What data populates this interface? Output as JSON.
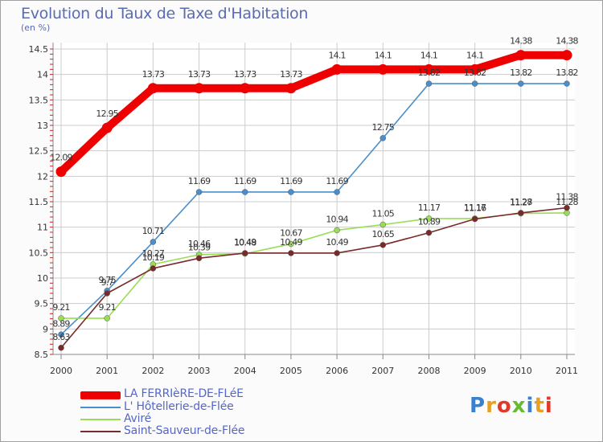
{
  "title": "Evolution du Taux de Taxe d'Habitation",
  "subtitle": "(en %)",
  "logo": "Proxiti",
  "colors": {
    "la_ferriere": "#ee0000",
    "hotellerie": "#4a8fcc",
    "avire": "#99dd55",
    "saint_sauveur": "#7a2a2a",
    "grid": "#cccccc",
    "axis_text": "#333333"
  },
  "chart_data": {
    "type": "line",
    "title": "Evolution du Taux de Taxe d'Habitation",
    "subtitle": "(en %)",
    "xlabel": "",
    "ylabel": "(en %)",
    "x": [
      "2000",
      "2001",
      "2002",
      "2003",
      "2004",
      "2005",
      "2006",
      "2007",
      "2008",
      "2009",
      "2010",
      "2011"
    ],
    "ylim": [
      8.5,
      14.5
    ],
    "yticks": [
      "8.5",
      "9",
      "9.5",
      "10",
      "10.5",
      "11",
      "11.5",
      "12",
      "12.5",
      "13",
      "13.5",
      "14",
      "14.5"
    ],
    "grid": true,
    "legend_position": "bottom-left",
    "series": [
      {
        "name": "LA FERRIèRE-DE-FLéE",
        "color": "#ee0000",
        "values": [
          12.09,
          12.95,
          13.73,
          13.73,
          13.73,
          13.73,
          14.1,
          14.1,
          14.1,
          14.1,
          14.38,
          14.38
        ],
        "labels": [
          "12.09",
          "12.95",
          "13.73",
          "13.73",
          "13.73",
          "13.73",
          "14.1",
          "14.1",
          "14.1",
          "14.1",
          "14.38",
          "14.38"
        ]
      },
      {
        "name": "L' Hôtellerie-de-Flée",
        "color": "#4a8fcc",
        "values": [
          8.89,
          9.75,
          10.71,
          11.69,
          11.69,
          11.69,
          11.69,
          12.75,
          13.82,
          13.82,
          13.82,
          13.82
        ],
        "labels": [
          "8.89",
          "9.75",
          "10.71",
          "11.69",
          "11.69",
          "11.69",
          "11.69",
          "12.75",
          "13.82",
          "13.82",
          "13.82",
          "13.82"
        ]
      },
      {
        "name": "Aviré",
        "color": "#99dd55",
        "values": [
          9.21,
          9.21,
          10.27,
          10.46,
          10.48,
          10.67,
          10.94,
          11.05,
          11.17,
          11.17,
          11.27,
          11.28
        ],
        "labels": [
          "9.21",
          "9.21",
          "10.27",
          "10.46",
          "10.48",
          "10.67",
          "10.94",
          "11.05",
          "11.17",
          "11.17",
          "11.27",
          "11.28"
        ]
      },
      {
        "name": "Saint-Sauveur-de-Flée",
        "color": "#7a2a2a",
        "values": [
          8.63,
          9.7,
          10.19,
          10.39,
          10.49,
          10.49,
          10.49,
          10.65,
          10.89,
          11.16,
          11.28,
          11.38
        ],
        "labels": [
          "8.63",
          "9.7",
          "10.19",
          "10.39",
          "10.49",
          "10.49",
          "10.49",
          "10.65",
          "10.89",
          "11.16",
          "11.28",
          "11.38"
        ]
      }
    ]
  }
}
